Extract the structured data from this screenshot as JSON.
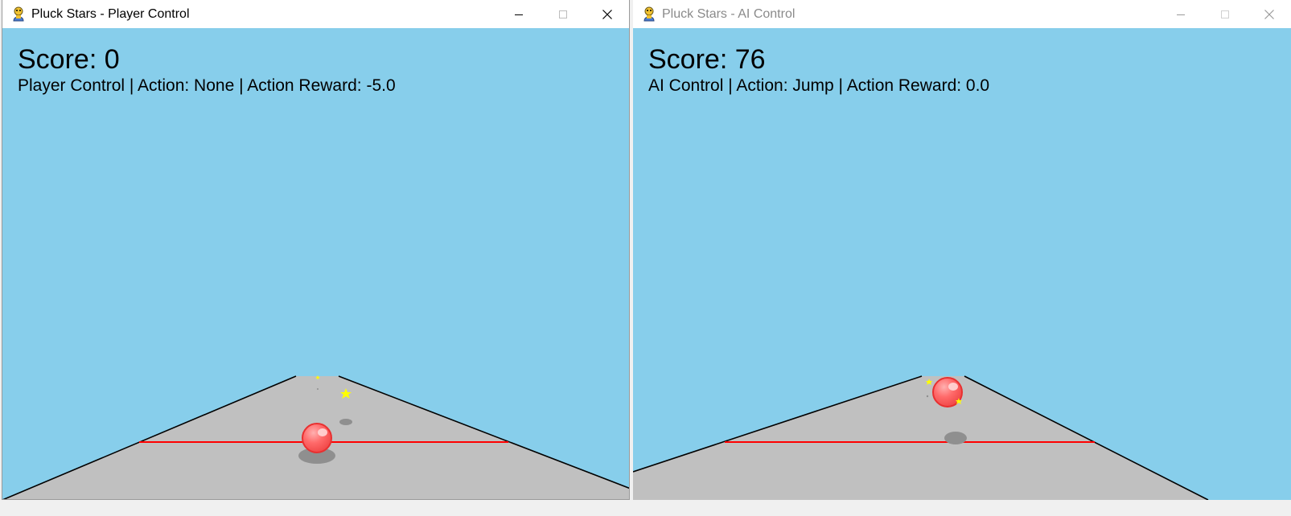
{
  "windows": [
    {
      "title": "Pluck Stars - Player Control",
      "active": true,
      "score_text": "Score: 0",
      "status_text": "Player Control | Action: None | Action Reward: -5.0"
    },
    {
      "title": "Pluck Stars - AI Control",
      "active": false,
      "score_text": "Score: 76",
      "status_text": "AI Control | Action: Jump | Action Reward: 0.0"
    }
  ],
  "icons": {
    "app": "pygame-snake-icon",
    "minimize": "minimize-icon",
    "maximize": "maximize-icon",
    "close": "close-icon"
  },
  "colors": {
    "sky": "#87ceeb",
    "road": "#c0c0c0",
    "edge": "#000000",
    "line": "#ff0000",
    "ball": "#ff5a5a",
    "star": "#ffff00",
    "shadow": "#8f8f8f"
  }
}
